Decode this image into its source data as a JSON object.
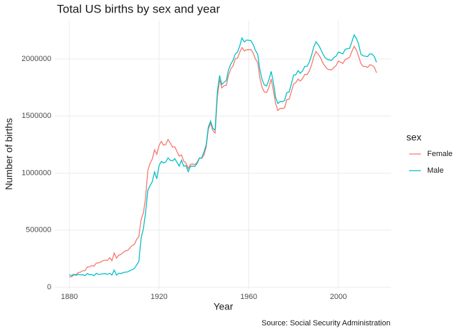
{
  "chart_data": {
    "type": "line",
    "title": "Total US births by sex and year",
    "xlabel": "Year",
    "ylabel": "Number of births",
    "caption": "Source: Social Security Administration",
    "legend_title": "sex",
    "legend": "right",
    "grid": true,
    "xlim": [
      1873.5,
      2023.5
    ],
    "xticks": [
      1880,
      1920,
      1960,
      2000
    ],
    "ylim": [
      -18000,
      2334000
    ],
    "yticks": [
      0,
      500000,
      1000000,
      1500000,
      2000000
    ],
    "x": [
      1880,
      1881,
      1882,
      1883,
      1884,
      1885,
      1886,
      1887,
      1888,
      1889,
      1890,
      1891,
      1892,
      1893,
      1894,
      1895,
      1896,
      1897,
      1898,
      1899,
      1900,
      1901,
      1902,
      1903,
      1904,
      1905,
      1906,
      1907,
      1908,
      1909,
      1910,
      1911,
      1912,
      1913,
      1914,
      1915,
      1916,
      1917,
      1918,
      1919,
      1920,
      1921,
      1922,
      1923,
      1924,
      1925,
      1926,
      1927,
      1928,
      1929,
      1930,
      1931,
      1932,
      1933,
      1934,
      1935,
      1936,
      1937,
      1938,
      1939,
      1940,
      1941,
      1942,
      1943,
      1944,
      1945,
      1946,
      1947,
      1948,
      1949,
      1950,
      1951,
      1952,
      1953,
      1954,
      1955,
      1956,
      1957,
      1958,
      1959,
      1960,
      1961,
      1962,
      1963,
      1964,
      1965,
      1966,
      1967,
      1968,
      1969,
      1970,
      1971,
      1972,
      1973,
      1974,
      1975,
      1976,
      1977,
      1978,
      1979,
      1980,
      1981,
      1982,
      1983,
      1984,
      1985,
      1986,
      1987,
      1988,
      1989,
      1990,
      1991,
      1992,
      1993,
      1994,
      1995,
      1996,
      1997,
      1998,
      1999,
      2000,
      2001,
      2002,
      2003,
      2004,
      2005,
      2006,
      2007,
      2008,
      2009,
      2010,
      2011,
      2012,
      2013,
      2014,
      2015,
      2016,
      2017
    ],
    "series": [
      {
        "name": "Female",
        "color": "#F8766D",
        "values": [
          91000,
          92000,
          108000,
          112000,
          129000,
          133000,
          144000,
          145000,
          178000,
          178000,
          190000,
          185000,
          212000,
          212000,
          222000,
          233000,
          237000,
          235000,
          259000,
          233000,
          300000,
          255000,
          280000,
          288000,
          304000,
          319000,
          322000,
          345000,
          365000,
          375000,
          420000,
          443000,
          594000,
          649000,
          784000,
          1023000,
          1085000,
          1124000,
          1204000,
          1165000,
          1242000,
          1278000,
          1245000,
          1251000,
          1294000,
          1264000,
          1227000,
          1231000,
          1189000,
          1148000,
          1160000,
          1105000,
          1088000,
          1041000,
          1076000,
          1080000,
          1075000,
          1095000,
          1133000,
          1129000,
          1158000,
          1226000,
          1386000,
          1438000,
          1372000,
          1351000,
          1665000,
          1821000,
          1746000,
          1766000,
          1770000,
          1858000,
          1913000,
          1939000,
          2001000,
          2008000,
          2058000,
          2100000,
          2071000,
          2080000,
          2081000,
          2082000,
          2051000,
          1999000,
          1969000,
          1830000,
          1748000,
          1710000,
          1706000,
          1752000,
          1824000,
          1723000,
          1610000,
          1548000,
          1567000,
          1565000,
          1573000,
          1644000,
          1646000,
          1712000,
          1780000,
          1793000,
          1823000,
          1806000,
          1828000,
          1865000,
          1862000,
          1893000,
          1946000,
          2018000,
          2065000,
          2041000,
          2013000,
          1967000,
          1937000,
          1913000,
          1905000,
          1905000,
          1926000,
          1942000,
          1982000,
          1970000,
          1961000,
          1994000,
          2003000,
          2015000,
          2066000,
          2110000,
          2079000,
          2024000,
          1961000,
          1935000,
          1935000,
          1925000,
          1949000,
          1944000,
          1928000,
          1879000
        ]
      },
      {
        "name": "Male",
        "color": "#00BFC4",
        "values": [
          110000,
          101000,
          114000,
          104000,
          114000,
          108000,
          110000,
          101000,
          120000,
          110000,
          111000,
          101000,
          122000,
          112000,
          115000,
          117000,
          119000,
          113000,
          122000,
          107000,
          150000,
          106000,
          122000,
          120000,
          128000,
          133000,
          134000,
          146000,
          154000,
          164000,
          194000,
          226000,
          430000,
          512000,
          654000,
          849000,
          890000,
          926000,
          1010000,
          950000,
          1064000,
          1102000,
          1088000,
          1097000,
          1133000,
          1112000,
          1107000,
          1126000,
          1095000,
          1061000,
          1113000,
          1060000,
          1065000,
          1012000,
          1060000,
          1061000,
          1059000,
          1084000,
          1131000,
          1132000,
          1183000,
          1245000,
          1405000,
          1456000,
          1391000,
          1378000,
          1710000,
          1855000,
          1776000,
          1795000,
          1812000,
          1907000,
          1955000,
          1988000,
          2044000,
          2060000,
          2115000,
          2184000,
          2149000,
          2166000,
          2163000,
          2160000,
          2125000,
          2074000,
          2040000,
          1903000,
          1816000,
          1771000,
          1764000,
          1817000,
          1891000,
          1794000,
          1662000,
          1609000,
          1627000,
          1625000,
          1636000,
          1706000,
          1710000,
          1781000,
          1858000,
          1861000,
          1898000,
          1874000,
          1895000,
          1935000,
          1935000,
          1972000,
          2031000,
          2105000,
          2150000,
          2127000,
          2090000,
          2047000,
          2013000,
          1996000,
          1991000,
          1988000,
          2013000,
          2025000,
          2060000,
          2053000,
          2045000,
          2084000,
          2090000,
          2092000,
          2150000,
          2210000,
          2180000,
          2130000,
          2043000,
          2028000,
          2024000,
          2020000,
          2045000,
          2042000,
          2022000,
          1970000
        ]
      }
    ]
  }
}
